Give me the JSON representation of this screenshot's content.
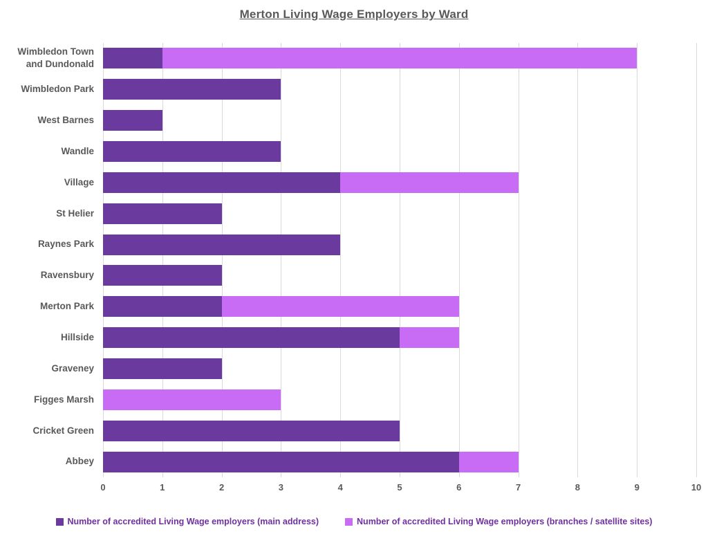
{
  "chart_data": {
    "type": "bar",
    "orientation": "horizontal",
    "stacked": true,
    "title": "Merton Living Wage Employers by Ward",
    "categories": [
      "Wimbledon Town and Dundonald",
      "Wimbledon Park",
      "West Barnes",
      "Wandle",
      "Village",
      "St Helier",
      "Raynes Park",
      "Ravensbury",
      "Merton Park",
      "Hillside",
      "Graveney",
      "Figges Marsh",
      "Cricket Green",
      "Abbey"
    ],
    "categories_order_note": "listed top to bottom as displayed",
    "series": [
      {
        "name": "Number of accredited Living Wage employers (main address)",
        "color": "#6a3a9e",
        "values": [
          1,
          3,
          1,
          3,
          4,
          2,
          4,
          2,
          2,
          5,
          2,
          0,
          5,
          6
        ]
      },
      {
        "name": "Number of accredited Living Wage employers (branches / satellite sites)",
        "color": "#c96cf5",
        "values": [
          8,
          0,
          0,
          0,
          3,
          0,
          0,
          0,
          4,
          1,
          0,
          3,
          0,
          1
        ]
      }
    ],
    "x_ticks": [
      0,
      1,
      2,
      3,
      4,
      5,
      6,
      7,
      8,
      9,
      10
    ],
    "xlim": [
      0,
      10
    ],
    "xlabel": "",
    "ylabel": "",
    "grid": "vertical",
    "legend_position": "bottom"
  },
  "colors": {
    "title_text": "#595959",
    "axis_text": "#595959",
    "category_text": "#595959",
    "legend_text": "#7030a0",
    "gridline": "#d9d9d9",
    "background": "#ffffff"
  }
}
